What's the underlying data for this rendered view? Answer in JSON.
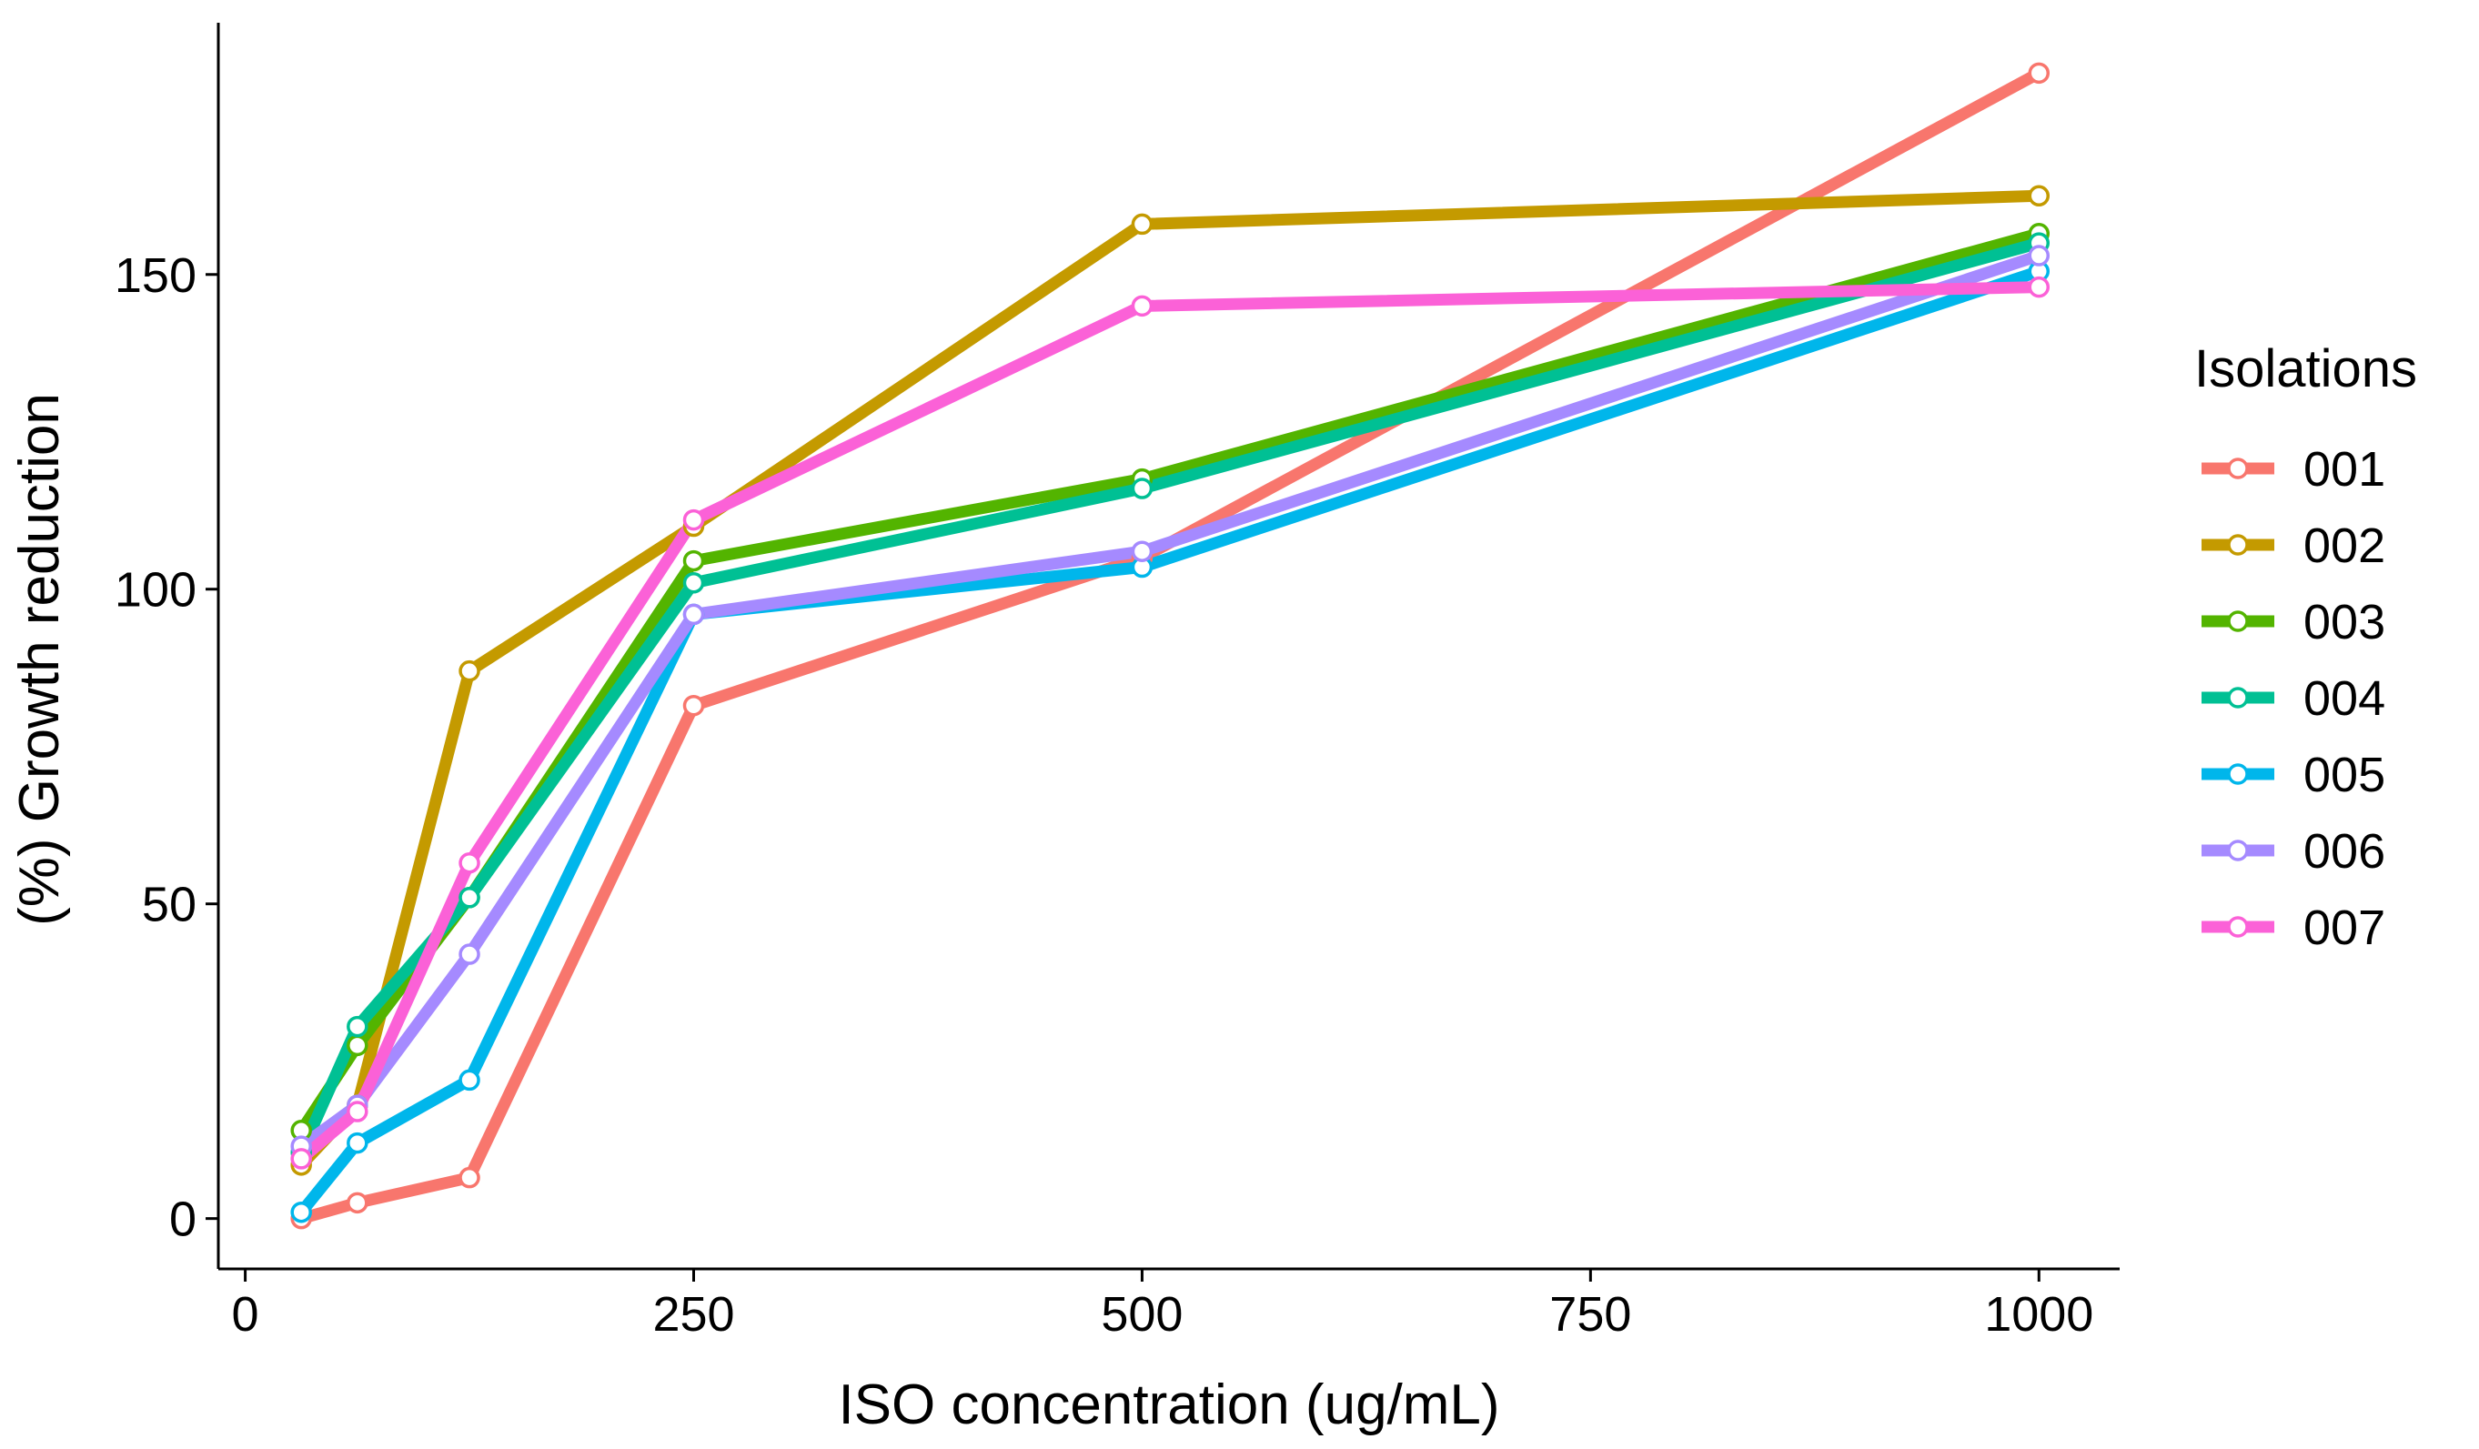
{
  "chart_data": {
    "type": "line",
    "title": "",
    "xlabel": "ISO concentration (ug/mL)",
    "ylabel": "(%) Growth reduction",
    "xlim": [
      -15,
      1045
    ],
    "ylim": [
      -8,
      190
    ],
    "x_ticks": [
      0,
      250,
      500,
      750,
      1000
    ],
    "y_ticks": [
      0,
      50,
      100,
      150
    ],
    "x_tick_labels": [
      "0",
      "250",
      "500",
      "750",
      "1000"
    ],
    "y_tick_labels": [
      "0",
      "50",
      "100",
      "150"
    ],
    "grid": false,
    "legend": {
      "title": "Isolations",
      "position": "right"
    },
    "x": [
      31.25,
      62.5,
      125,
      250,
      500,
      1000
    ],
    "series": [
      {
        "name": "001",
        "color": "#F8766D",
        "values": [
          0,
          2.5,
          6.5,
          81.5,
          105,
          182
        ]
      },
      {
        "name": "002",
        "color": "#C49A00",
        "values": [
          8.5,
          18,
          87,
          110,
          158,
          162.5
        ]
      },
      {
        "name": "003",
        "color": "#53B400",
        "values": [
          14,
          27.5,
          51,
          104.5,
          117.5,
          156.5
        ]
      },
      {
        "name": "004",
        "color": "#00C094",
        "values": [
          10.5,
          30.5,
          51,
          101,
          116,
          155
        ]
      },
      {
        "name": "005",
        "color": "#00B6EB",
        "values": [
          1,
          12,
          22,
          96,
          103.5,
          150.5
        ]
      },
      {
        "name": "006",
        "color": "#A58AFF",
        "values": [
          11.5,
          18,
          42,
          96,
          106,
          153
        ]
      },
      {
        "name": "007",
        "color": "#FB61D7",
        "values": [
          9.5,
          17,
          56.5,
          111,
          145,
          148
        ]
      }
    ]
  }
}
